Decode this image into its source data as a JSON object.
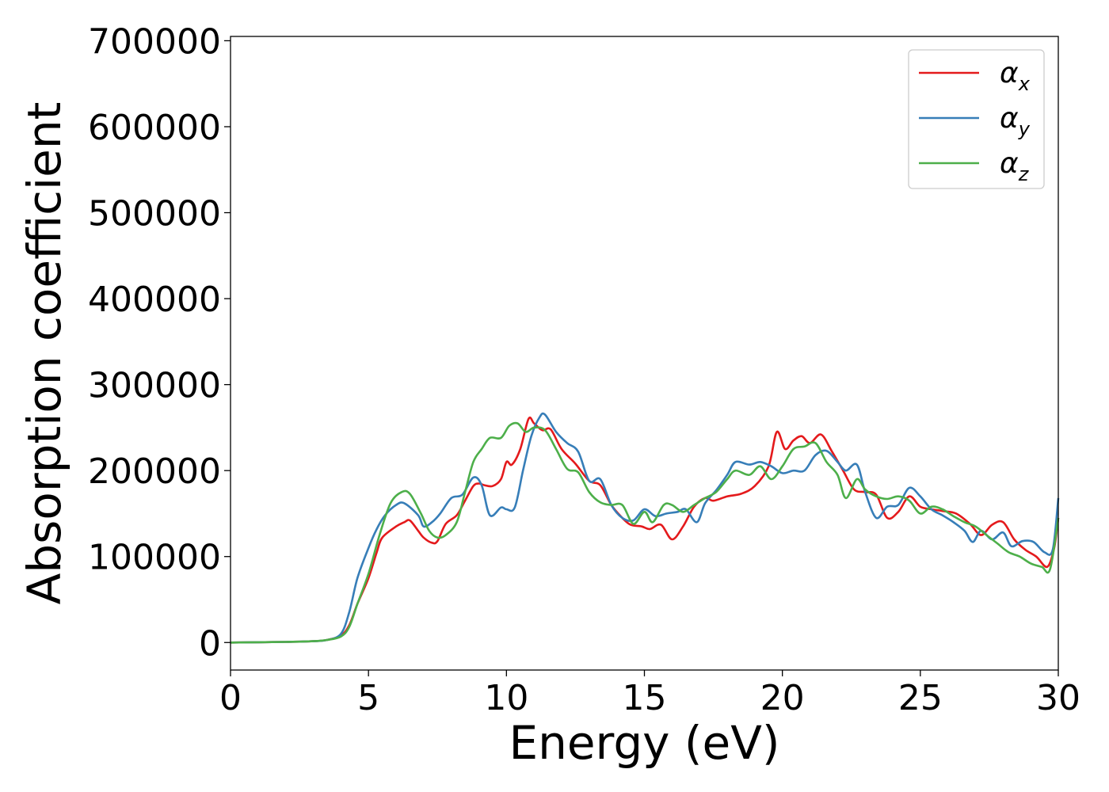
{
  "chart_data": {
    "type": "line",
    "xlabel": "Energy (eV)",
    "ylabel": "Absorption coefficient",
    "xlim": [
      0,
      30
    ],
    "ylim": [
      -32000,
      705000
    ],
    "xticks": [
      0,
      5,
      10,
      15,
      20,
      25,
      30
    ],
    "yticks": [
      0,
      100000,
      200000,
      300000,
      400000,
      500000,
      600000,
      700000
    ],
    "grid": false,
    "legend_position": "top-right",
    "series": [
      {
        "name": "α_x",
        "symbol": "α",
        "subscript": "x",
        "color": "#e41a1c",
        "points": [
          [
            0,
            0
          ],
          [
            1,
            300
          ],
          [
            2,
            700
          ],
          [
            3,
            1500
          ],
          [
            3.5,
            3000
          ],
          [
            4,
            8000
          ],
          [
            4.3,
            20000
          ],
          [
            4.6,
            45000
          ],
          [
            5,
            75000
          ],
          [
            5.3,
            105000
          ],
          [
            5.5,
            122000
          ],
          [
            6,
            135000
          ],
          [
            6.3,
            140000
          ],
          [
            6.5,
            142000
          ],
          [
            6.8,
            130000
          ],
          [
            7,
            122000
          ],
          [
            7.3,
            116000
          ],
          [
            7.5,
            118000
          ],
          [
            7.8,
            138000
          ],
          [
            8.2,
            148000
          ],
          [
            8.5,
            165000
          ],
          [
            8.8,
            182000
          ],
          [
            9,
            185000
          ],
          [
            9.2,
            183000
          ],
          [
            9.5,
            182000
          ],
          [
            9.8,
            190000
          ],
          [
            10,
            210000
          ],
          [
            10.2,
            207000
          ],
          [
            10.5,
            225000
          ],
          [
            10.8,
            260000
          ],
          [
            11,
            255000
          ],
          [
            11.3,
            247000
          ],
          [
            11.6,
            248000
          ],
          [
            12,
            225000
          ],
          [
            12.5,
            208000
          ],
          [
            13,
            188000
          ],
          [
            13.4,
            183000
          ],
          [
            13.8,
            160000
          ],
          [
            14.2,
            145000
          ],
          [
            14.5,
            137000
          ],
          [
            14.9,
            135000
          ],
          [
            15.2,
            132000
          ],
          [
            15.6,
            137000
          ],
          [
            16,
            120000
          ],
          [
            16.4,
            135000
          ],
          [
            16.8,
            158000
          ],
          [
            17.2,
            168000
          ],
          [
            17.5,
            165000
          ],
          [
            18,
            170000
          ],
          [
            18.5,
            173000
          ],
          [
            19,
            182000
          ],
          [
            19.5,
            205000
          ],
          [
            19.8,
            245000
          ],
          [
            20.1,
            225000
          ],
          [
            20.4,
            235000
          ],
          [
            20.7,
            240000
          ],
          [
            21,
            232000
          ],
          [
            21.4,
            242000
          ],
          [
            21.8,
            222000
          ],
          [
            22.2,
            200000
          ],
          [
            22.6,
            178000
          ],
          [
            23,
            175000
          ],
          [
            23.4,
            172000
          ],
          [
            23.8,
            145000
          ],
          [
            24.2,
            152000
          ],
          [
            24.6,
            170000
          ],
          [
            25,
            158000
          ],
          [
            25.4,
            155000
          ],
          [
            25.8,
            153000
          ],
          [
            26.3,
            150000
          ],
          [
            26.8,
            138000
          ],
          [
            27.2,
            125000
          ],
          [
            27.6,
            137000
          ],
          [
            28,
            140000
          ],
          [
            28.4,
            120000
          ],
          [
            28.8,
            108000
          ],
          [
            29.2,
            100000
          ],
          [
            29.6,
            88000
          ],
          [
            29.85,
            110000
          ],
          [
            30,
            145000
          ]
        ]
      },
      {
        "name": "α_y",
        "symbol": "α",
        "subscript": "y",
        "color": "#377eb8",
        "points": [
          [
            0,
            0
          ],
          [
            1,
            300
          ],
          [
            2,
            700
          ],
          [
            3,
            1500
          ],
          [
            3.5,
            3000
          ],
          [
            4,
            10000
          ],
          [
            4.3,
            35000
          ],
          [
            4.6,
            75000
          ],
          [
            5,
            110000
          ],
          [
            5.3,
            132000
          ],
          [
            5.6,
            148000
          ],
          [
            6,
            160000
          ],
          [
            6.3,
            162000
          ],
          [
            6.8,
            148000
          ],
          [
            7,
            135000
          ],
          [
            7.3,
            140000
          ],
          [
            7.6,
            150000
          ],
          [
            8,
            168000
          ],
          [
            8.4,
            172000
          ],
          [
            8.8,
            192000
          ],
          [
            9.1,
            183000
          ],
          [
            9.4,
            148000
          ],
          [
            9.8,
            157000
          ],
          [
            10,
            155000
          ],
          [
            10.3,
            157000
          ],
          [
            10.6,
            200000
          ],
          [
            10.9,
            240000
          ],
          [
            11.2,
            262000
          ],
          [
            11.4,
            265000
          ],
          [
            11.8,
            245000
          ],
          [
            12.2,
            232000
          ],
          [
            12.6,
            222000
          ],
          [
            13,
            188000
          ],
          [
            13.4,
            190000
          ],
          [
            13.8,
            160000
          ],
          [
            14.2,
            145000
          ],
          [
            14.6,
            142000
          ],
          [
            15,
            155000
          ],
          [
            15.4,
            147000
          ],
          [
            15.8,
            150000
          ],
          [
            16.2,
            152000
          ],
          [
            16.5,
            155000
          ],
          [
            16.9,
            140000
          ],
          [
            17.2,
            162000
          ],
          [
            17.6,
            177000
          ],
          [
            18,
            195000
          ],
          [
            18.3,
            210000
          ],
          [
            18.8,
            207000
          ],
          [
            19.2,
            210000
          ],
          [
            19.6,
            205000
          ],
          [
            20,
            197000
          ],
          [
            20.4,
            200000
          ],
          [
            20.8,
            200000
          ],
          [
            21.2,
            218000
          ],
          [
            21.6,
            223000
          ],
          [
            22,
            210000
          ],
          [
            22.3,
            200000
          ],
          [
            22.7,
            207000
          ],
          [
            23,
            175000
          ],
          [
            23.4,
            145000
          ],
          [
            23.8,
            158000
          ],
          [
            24.2,
            160000
          ],
          [
            24.6,
            180000
          ],
          [
            25,
            170000
          ],
          [
            25.4,
            155000
          ],
          [
            25.8,
            148000
          ],
          [
            26.2,
            140000
          ],
          [
            26.6,
            130000
          ],
          [
            26.9,
            117000
          ],
          [
            27.2,
            130000
          ],
          [
            27.6,
            120000
          ],
          [
            28,
            128000
          ],
          [
            28.3,
            112000
          ],
          [
            28.7,
            118000
          ],
          [
            29.1,
            117000
          ],
          [
            29.5,
            105000
          ],
          [
            29.8,
            108000
          ],
          [
            30,
            168000
          ]
        ]
      },
      {
        "name": "α_z",
        "symbol": "α",
        "subscript": "z",
        "color": "#4daf4a",
        "points": [
          [
            0,
            0
          ],
          [
            1,
            300
          ],
          [
            2,
            700
          ],
          [
            3,
            1500
          ],
          [
            3.5,
            3000
          ],
          [
            4,
            7000
          ],
          [
            4.3,
            18000
          ],
          [
            4.6,
            45000
          ],
          [
            5,
            80000
          ],
          [
            5.4,
            125000
          ],
          [
            5.8,
            162000
          ],
          [
            6.2,
            175000
          ],
          [
            6.5,
            173000
          ],
          [
            6.9,
            150000
          ],
          [
            7.2,
            130000
          ],
          [
            7.5,
            122000
          ],
          [
            7.8,
            125000
          ],
          [
            8.2,
            140000
          ],
          [
            8.5,
            175000
          ],
          [
            8.8,
            210000
          ],
          [
            9.1,
            225000
          ],
          [
            9.4,
            238000
          ],
          [
            9.8,
            238000
          ],
          [
            10.1,
            252000
          ],
          [
            10.4,
            255000
          ],
          [
            10.7,
            245000
          ],
          [
            11,
            250000
          ],
          [
            11.4,
            247000
          ],
          [
            11.8,
            225000
          ],
          [
            12.2,
            202000
          ],
          [
            12.6,
            198000
          ],
          [
            13,
            175000
          ],
          [
            13.4,
            163000
          ],
          [
            13.8,
            160000
          ],
          [
            14.2,
            160000
          ],
          [
            14.6,
            138000
          ],
          [
            15,
            152000
          ],
          [
            15.3,
            140000
          ],
          [
            15.7,
            160000
          ],
          [
            16,
            160000
          ],
          [
            16.4,
            152000
          ],
          [
            16.8,
            160000
          ],
          [
            17.2,
            168000
          ],
          [
            17.6,
            175000
          ],
          [
            18,
            190000
          ],
          [
            18.3,
            200000
          ],
          [
            18.8,
            195000
          ],
          [
            19.2,
            205000
          ],
          [
            19.6,
            190000
          ],
          [
            20,
            205000
          ],
          [
            20.4,
            225000
          ],
          [
            20.8,
            228000
          ],
          [
            21.2,
            232000
          ],
          [
            21.6,
            210000
          ],
          [
            22,
            195000
          ],
          [
            22.3,
            168000
          ],
          [
            22.7,
            190000
          ],
          [
            23,
            178000
          ],
          [
            23.4,
            170000
          ],
          [
            23.8,
            167000
          ],
          [
            24.2,
            170000
          ],
          [
            24.6,
            165000
          ],
          [
            25,
            150000
          ],
          [
            25.4,
            158000
          ],
          [
            25.8,
            155000
          ],
          [
            26.2,
            147000
          ],
          [
            26.6,
            140000
          ],
          [
            27,
            135000
          ],
          [
            27.4,
            125000
          ],
          [
            27.8,
            115000
          ],
          [
            28.2,
            105000
          ],
          [
            28.6,
            100000
          ],
          [
            29,
            92000
          ],
          [
            29.4,
            88000
          ],
          [
            29.7,
            85000
          ],
          [
            30,
            145000
          ]
        ]
      }
    ]
  }
}
